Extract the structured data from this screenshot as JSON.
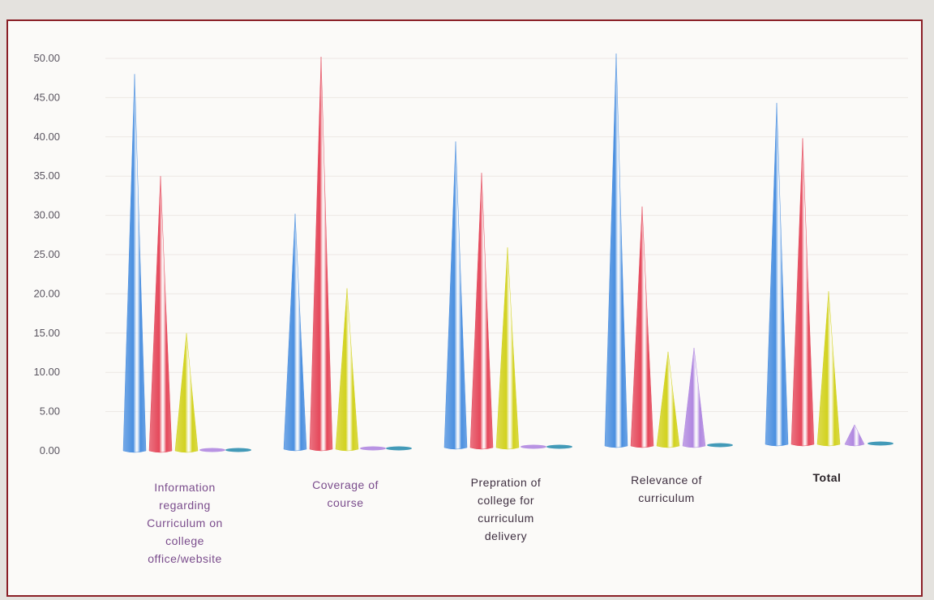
{
  "chart_data": {
    "type": "bar",
    "bar_shape": "cone",
    "title": "",
    "xlabel": "",
    "ylabel": "",
    "ylim": [
      0,
      50
    ],
    "ytick_step": 5,
    "ytick_labels": [
      "0.00",
      "5.00",
      "10.00",
      "15.00",
      "20.00",
      "25.00",
      "30.00",
      "35.00",
      "40.00",
      "45.00",
      "50.00"
    ],
    "grid": true,
    "legend": "none",
    "categories": [
      "Information regarding Curriculum on college office/website",
      "Coverage of course",
      "Prepration of college for curriculum delivery",
      "Relevance of curriculum",
      "Total"
    ],
    "category_label_lines": [
      [
        "Information",
        "regarding",
        "Curriculum on",
        "college",
        "office/website"
      ],
      [
        "Coverage of",
        "course"
      ],
      [
        "Prepration of",
        "college for",
        "curriculum",
        "delivery"
      ],
      [
        "Relevance of",
        "curriculum"
      ],
      [
        "Total"
      ]
    ],
    "category_label_colors": [
      "#7a4c8c",
      "#7a4c8c",
      "#3e2f40",
      "#3e2f40",
      "#2a2328"
    ],
    "series": [
      {
        "color": "#4a8fe0",
        "values": [
          48,
          30,
          39,
          50,
          43.5
        ]
      },
      {
        "color": "#e5475a",
        "values": [
          35,
          50,
          35,
          30.5,
          39
        ]
      },
      {
        "color": "#d2d21e",
        "values": [
          15,
          20.5,
          25.5,
          12,
          19.5
        ]
      },
      {
        "color": "#b087e0",
        "values": [
          0,
          0,
          0,
          12.5,
          2.5
        ]
      },
      {
        "color": "#2f8fb0",
        "values": [
          0.3,
          0.3,
          0.3,
          0.3,
          0.3
        ]
      }
    ]
  }
}
